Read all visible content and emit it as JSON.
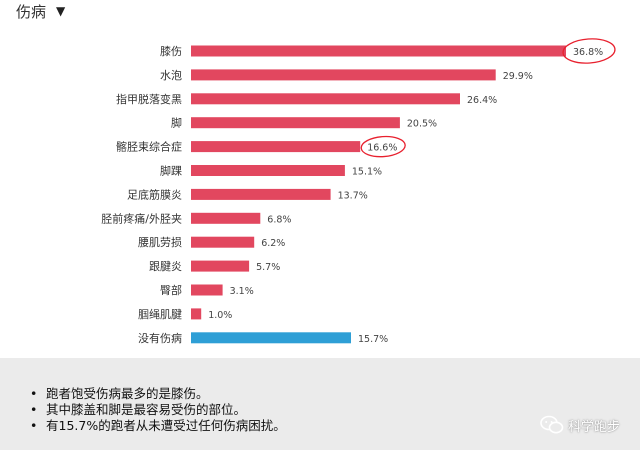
{
  "header": {
    "title": "伤病",
    "arrow": "▼"
  },
  "chart_data": {
    "type": "bar",
    "orientation": "horizontal",
    "categories": [
      "膝伤",
      "水泡",
      "指甲脱落变黑",
      "脚",
      "髂胫束综合症",
      "脚踝",
      "足底筋膜炎",
      "胫前疼痛/外胫夹",
      "腰肌劳损",
      "跟腱炎",
      "臀部",
      "腘绳肌腱",
      "没有伤病"
    ],
    "values": [
      36.8,
      29.9,
      26.4,
      20.5,
      16.6,
      15.1,
      13.7,
      6.8,
      6.2,
      5.7,
      3.1,
      1.0,
      15.7
    ],
    "value_labels": [
      "36.8%",
      "29.9%",
      "26.4%",
      "20.5%",
      "16.6%",
      "15.1%",
      "13.7%",
      "6.8%",
      "6.2%",
      "5.7%",
      "3.1%",
      "1.0%",
      "15.7%"
    ],
    "highlighted": [
      0,
      4
    ],
    "xlim": [
      0,
      36.8
    ],
    "grid": false,
    "colors": {
      "injury": "#e2475f",
      "none": "#2e9fd6",
      "annotation": "#e8202e"
    }
  },
  "notes": [
    "跑者饱受伤病最多的是膝伤。",
    "其中膝盖和脚是最容易受伤的部位。",
    "有15.7%的跑者从未遭受过任何伤病困扰。"
  ],
  "watermark": {
    "text": "科学跑步",
    "icon": "wechat-icon"
  }
}
